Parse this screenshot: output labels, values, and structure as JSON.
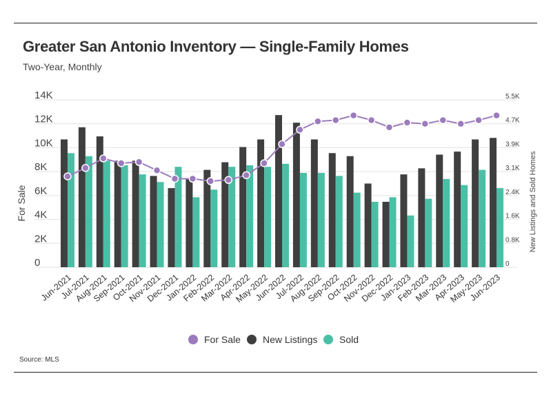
{
  "title": "Greater San Antonio Inventory — Single-Family Homes",
  "subtitle": "Two-Year, Monthly",
  "source": "Source: MLS",
  "colors": {
    "for_sale": "#9b7bbd",
    "new_listings": "#3f3f3f",
    "sold": "#4bbfa6"
  },
  "chart_data": {
    "type": "bar",
    "categories": [
      "Jun-2021",
      "Jul-2021",
      "Aug-2021",
      "Sep-2021",
      "Oct-2021",
      "Nov-2021",
      "Dec-2021",
      "Jan-2022",
      "Feb-2022",
      "Mar-2022",
      "Apr-2022",
      "May-2022",
      "Jun-2022",
      "Jul-2022",
      "Aug-2022",
      "Sep-2022",
      "Oct-2022",
      "Nov-2022",
      "Dec-2022",
      "Jan-2023",
      "Feb-2023",
      "Mar-2023",
      "Apr-2023",
      "May-2023",
      "Jun-2023"
    ],
    "ylabel": "For Sale",
    "y2label": "New Listings and Sold Homes",
    "ylim": [
      0,
      14000
    ],
    "y2lim": [
      0,
      5500
    ],
    "yticks": [
      "0",
      "2K",
      "4K",
      "6K",
      "8K",
      "10K",
      "12K",
      "14K"
    ],
    "y2ticks": [
      "0",
      "0.8K",
      "1.6K",
      "2.4K",
      "3.1K",
      "3.9K",
      "4.7K",
      "5.5K"
    ],
    "grid": true,
    "legend_position": "bottom",
    "series": [
      {
        "name": "For Sale",
        "type": "line",
        "axis": "left",
        "values": [
          7600,
          8300,
          9100,
          8700,
          8800,
          8100,
          7400,
          7400,
          7200,
          7300,
          7700,
          8700,
          10300,
          11500,
          12200,
          12300,
          12700,
          12300,
          11700,
          12100,
          12000,
          12300,
          12000,
          12300,
          12700
        ]
      },
      {
        "name": "New Listings",
        "type": "bar",
        "axis": "right",
        "values": [
          4200,
          4600,
          4300,
          3500,
          3500,
          3000,
          2600,
          2900,
          3200,
          3450,
          3950,
          4200,
          5000,
          4750,
          4200,
          3750,
          3650,
          2750,
          2150,
          3050,
          3250,
          3700,
          3800,
          4200,
          4250
        ]
      },
      {
        "name": "Sold",
        "type": "bar",
        "axis": "right",
        "values": [
          3750,
          3650,
          3500,
          3350,
          3050,
          2800,
          3300,
          2300,
          2550,
          3300,
          3350,
          3300,
          3400,
          3100,
          3100,
          3000,
          2450,
          2150,
          2300,
          1700,
          2250,
          2900,
          2700,
          3200,
          2600
        ]
      }
    ]
  }
}
